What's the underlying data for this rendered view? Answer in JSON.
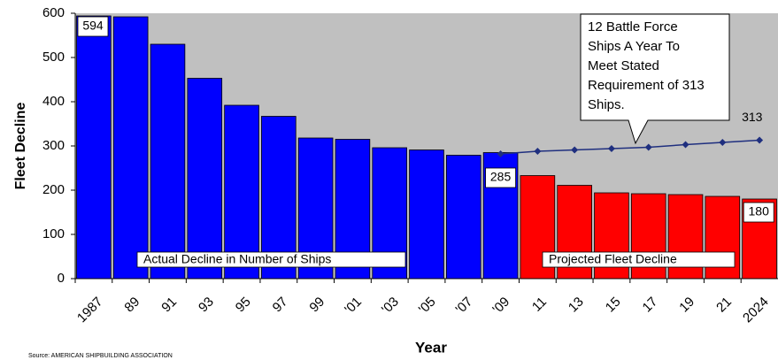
{
  "chart_data": {
    "type": "bar",
    "y_label": "Fleet Decline",
    "x_label": "Year",
    "source": "Source: AMERICAN SHIPBUILDING ASSOCIATION",
    "categories": [
      "1987",
      "89",
      "91",
      "93",
      "95",
      "97",
      "99",
      "'01",
      "'03",
      "'05",
      "'07",
      "'09",
      "11",
      "13",
      "15",
      "17",
      "19",
      "21",
      "2024"
    ],
    "series": [
      {
        "name": "Actual Decline in Number of Ships",
        "color": "#0000ff",
        "values": [
          594,
          592,
          530,
          453,
          392,
          367,
          318,
          315,
          296,
          291,
          279,
          285,
          null,
          null,
          null,
          null,
          null,
          null,
          null
        ],
        "value_labels": [
          "594",
          null,
          null,
          null,
          null,
          null,
          null,
          null,
          null,
          null,
          null,
          "285",
          null,
          null,
          null,
          null,
          null,
          null,
          null
        ]
      },
      {
        "name": "Projected Fleet Decline",
        "color": "#ff0000",
        "values": [
          null,
          null,
          null,
          null,
          null,
          null,
          null,
          null,
          null,
          null,
          null,
          null,
          233,
          211,
          194,
          192,
          190,
          186,
          180
        ],
        "value_labels": [
          null,
          null,
          null,
          null,
          null,
          null,
          null,
          null,
          null,
          null,
          null,
          null,
          null,
          null,
          null,
          null,
          null,
          null,
          "180"
        ]
      },
      {
        "type": "line",
        "color": "#1f2f7f",
        "values": [
          null,
          null,
          null,
          null,
          null,
          null,
          null,
          null,
          null,
          null,
          null,
          282,
          288,
          291,
          294,
          297,
          303,
          308,
          313
        ],
        "value_labels": [
          null,
          null,
          null,
          null,
          null,
          null,
          null,
          null,
          null,
          null,
          null,
          null,
          null,
          null,
          null,
          null,
          null,
          null,
          "313"
        ]
      }
    ],
    "callout": [
      "12 Battle Force",
      "Ships A Year To",
      "Meet Stated",
      "Requirement of 313",
      "Ships."
    ],
    "ylim": [
      0,
      600
    ],
    "yticks": [
      0,
      100,
      200,
      300,
      400,
      500,
      600
    ],
    "background": "#c0c0c0"
  }
}
